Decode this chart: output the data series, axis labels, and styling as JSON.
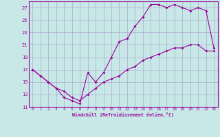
{
  "xlabel": "Windchill (Refroidissement éolien,°C)",
  "background_color": "#c8e8e8",
  "line_color": "#990099",
  "grid_color": "#aaaacc",
  "hours": [
    0,
    1,
    2,
    3,
    4,
    5,
    6,
    7,
    8,
    9,
    10,
    11,
    12,
    13,
    14,
    15,
    16,
    17,
    18,
    19,
    20,
    21,
    22,
    23
  ],
  "upper_line": [
    17.0,
    16.0,
    15.0,
    14.0,
    12.5,
    12.0,
    11.5,
    16.5,
    15.0,
    16.5,
    19.0,
    21.5,
    22.0,
    24.0,
    25.5,
    27.5,
    27.5,
    27.0,
    27.5,
    27.0,
    26.5,
    27.0,
    26.5,
    20.5
  ],
  "lower_line": [
    17.0,
    16.0,
    15.0,
    14.0,
    13.5,
    12.5,
    12.0,
    13.0,
    14.0,
    15.0,
    15.5,
    16.0,
    17.0,
    17.5,
    18.5,
    19.0,
    19.5,
    20.0,
    20.5,
    20.5,
    21.0,
    21.0,
    20.0,
    20.0
  ],
  "ylim": [
    11,
    28
  ],
  "xlim": [
    -0.5,
    23.5
  ],
  "yticks": [
    11,
    13,
    15,
    17,
    19,
    21,
    23,
    25,
    27
  ],
  "xticks": [
    0,
    1,
    2,
    3,
    4,
    5,
    6,
    7,
    8,
    9,
    10,
    11,
    12,
    13,
    14,
    15,
    16,
    17,
    18,
    19,
    20,
    21,
    22,
    23
  ]
}
